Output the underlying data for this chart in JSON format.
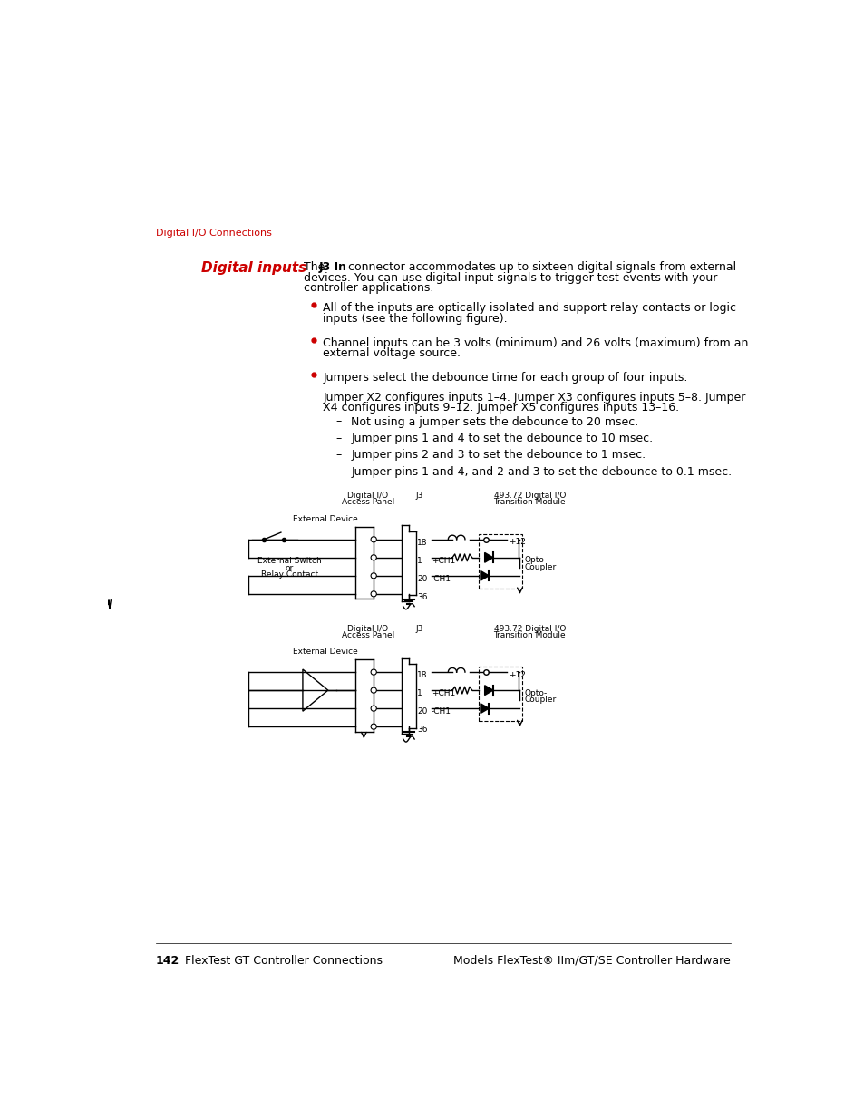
{
  "page_bg": "#ffffff",
  "red_color": "#cc0000",
  "section_label": "Digital I/O Connections",
  "heading": "Digital inputs",
  "footer_left_bold": "142",
  "footer_left_rest": "   FlexTest GT Controller Connections",
  "footer_right": "Models FlexTest® IIm/GT/SE Controller Hardware",
  "sub_bullets": [
    "Not using a jumper sets the debounce to 20 msec.",
    "Jumper pins 1 and 4 to set the debounce to 10 msec.",
    "Jumper pins 2 and 3 to set the debounce to 1 msec.",
    "Jumper pins 1 and 4, and 2 and 3 to set the debounce to 0.1 msec."
  ]
}
